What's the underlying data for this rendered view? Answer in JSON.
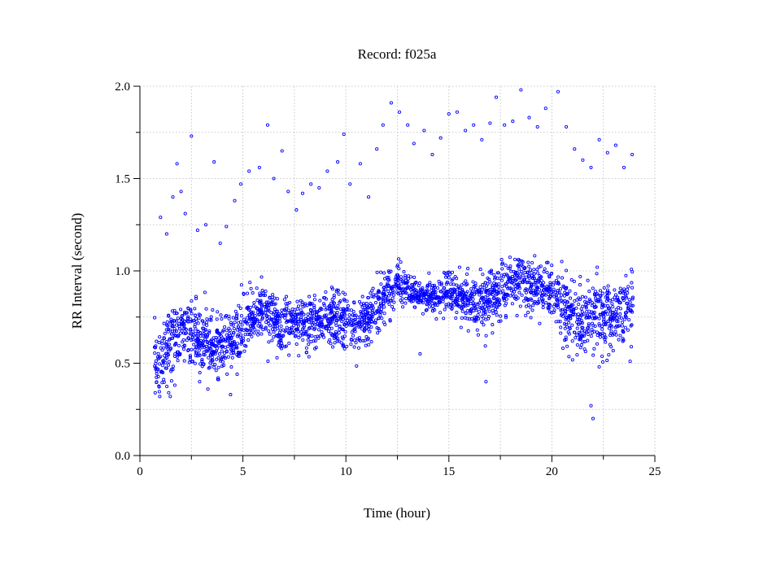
{
  "chart_data": {
    "type": "scatter",
    "title": "Record:  f025a",
    "xlabel": "Time (hour)",
    "ylabel": "RR Interval (second)",
    "xlim": [
      0,
      25
    ],
    "ylim": [
      0.0,
      2.0
    ],
    "x_ticks": [
      0,
      5,
      10,
      15,
      20,
      25
    ],
    "x_tick_labels": [
      "0",
      "5",
      "10",
      "15",
      "20",
      "25"
    ],
    "y_ticks": [
      0.0,
      0.5,
      1.0,
      1.5,
      2.0
    ],
    "y_tick_labels": [
      "0.0",
      "0.5",
      "1.0",
      "1.5",
      "2.0"
    ],
    "grid": true,
    "marker_color": "#0000ff",
    "series": [
      {
        "trend": [
          [
            0.7,
            0.5
          ],
          [
            1.0,
            0.52
          ],
          [
            1.5,
            0.62
          ],
          [
            2.0,
            0.66
          ],
          [
            2.5,
            0.68
          ],
          [
            3.0,
            0.62
          ],
          [
            3.5,
            0.58
          ],
          [
            4.0,
            0.6
          ],
          [
            4.5,
            0.62
          ],
          [
            5.0,
            0.7
          ],
          [
            5.5,
            0.76
          ],
          [
            6.0,
            0.78
          ],
          [
            6.5,
            0.72
          ],
          [
            7.0,
            0.68
          ],
          [
            7.5,
            0.72
          ],
          [
            8.0,
            0.7
          ],
          [
            8.5,
            0.72
          ],
          [
            9.0,
            0.74
          ],
          [
            9.5,
            0.74
          ],
          [
            10.0,
            0.72
          ],
          [
            10.5,
            0.7
          ],
          [
            11.0,
            0.74
          ],
          [
            11.5,
            0.8
          ],
          [
            12.0,
            0.88
          ],
          [
            12.5,
            0.94
          ],
          [
            13.0,
            0.9
          ],
          [
            13.5,
            0.86
          ],
          [
            14.0,
            0.86
          ],
          [
            14.5,
            0.86
          ],
          [
            15.0,
            0.88
          ],
          [
            15.5,
            0.88
          ],
          [
            16.0,
            0.84
          ],
          [
            16.5,
            0.8
          ],
          [
            17.0,
            0.86
          ],
          [
            17.5,
            0.9
          ],
          [
            18.0,
            0.92
          ],
          [
            18.5,
            0.94
          ],
          [
            19.0,
            0.92
          ],
          [
            19.5,
            0.9
          ],
          [
            20.0,
            0.88
          ],
          [
            20.5,
            0.8
          ],
          [
            21.0,
            0.76
          ],
          [
            21.5,
            0.72
          ],
          [
            22.0,
            0.74
          ],
          [
            22.5,
            0.76
          ],
          [
            23.0,
            0.76
          ],
          [
            23.5,
            0.78
          ],
          [
            23.95,
            0.8
          ]
        ],
        "spread": [
          [
            0.7,
            0.1
          ],
          [
            4.5,
            0.1
          ],
          [
            5.0,
            0.08
          ],
          [
            12.0,
            0.08
          ],
          [
            13.0,
            0.04
          ],
          [
            15.0,
            0.05
          ],
          [
            16.0,
            0.08
          ],
          [
            20.0,
            0.08
          ],
          [
            20.5,
            0.1
          ],
          [
            23.95,
            0.11
          ]
        ],
        "outliers": [
          [
            1.0,
            1.29
          ],
          [
            1.3,
            1.2
          ],
          [
            1.6,
            1.4
          ],
          [
            1.8,
            1.58
          ],
          [
            2.0,
            1.43
          ],
          [
            2.2,
            1.31
          ],
          [
            2.5,
            1.73
          ],
          [
            2.8,
            1.22
          ],
          [
            3.2,
            1.25
          ],
          [
            3.6,
            1.59
          ],
          [
            3.9,
            1.15
          ],
          [
            4.2,
            1.24
          ],
          [
            4.6,
            1.38
          ],
          [
            4.9,
            1.47
          ],
          [
            5.3,
            1.54
          ],
          [
            5.8,
            1.56
          ],
          [
            6.2,
            1.79
          ],
          [
            6.5,
            1.5
          ],
          [
            6.9,
            1.65
          ],
          [
            7.2,
            1.43
          ],
          [
            7.6,
            1.33
          ],
          [
            7.9,
            1.42
          ],
          [
            8.3,
            1.47
          ],
          [
            8.7,
            1.45
          ],
          [
            9.1,
            1.54
          ],
          [
            9.6,
            1.59
          ],
          [
            9.9,
            1.74
          ],
          [
            10.2,
            1.47
          ],
          [
            10.7,
            1.58
          ],
          [
            11.1,
            1.4
          ],
          [
            11.5,
            1.66
          ],
          [
            11.8,
            1.79
          ],
          [
            12.2,
            1.91
          ],
          [
            12.6,
            1.86
          ],
          [
            13.0,
            1.79
          ],
          [
            13.3,
            1.69
          ],
          [
            13.8,
            1.76
          ],
          [
            14.2,
            1.63
          ],
          [
            14.6,
            1.72
          ],
          [
            15.0,
            1.85
          ],
          [
            15.4,
            1.86
          ],
          [
            15.8,
            1.76
          ],
          [
            16.2,
            1.79
          ],
          [
            16.6,
            1.71
          ],
          [
            17.0,
            1.8
          ],
          [
            17.3,
            1.94
          ],
          [
            17.7,
            1.79
          ],
          [
            18.1,
            1.81
          ],
          [
            18.5,
            1.98
          ],
          [
            18.9,
            1.83
          ],
          [
            19.3,
            1.78
          ],
          [
            19.7,
            1.88
          ],
          [
            20.3,
            1.97
          ],
          [
            20.7,
            1.78
          ],
          [
            21.1,
            1.66
          ],
          [
            21.5,
            1.6
          ],
          [
            21.9,
            1.56
          ],
          [
            22.3,
            1.71
          ],
          [
            22.7,
            1.64
          ],
          [
            23.1,
            1.68
          ],
          [
            23.5,
            1.56
          ],
          [
            23.9,
            1.63
          ],
          [
            1.4,
            0.34
          ],
          [
            2.9,
            0.4
          ],
          [
            3.3,
            0.36
          ],
          [
            4.4,
            0.33
          ],
          [
            13.6,
            0.55
          ],
          [
            16.8,
            0.4
          ],
          [
            21.9,
            0.27
          ],
          [
            22.0,
            0.2
          ],
          [
            22.3,
            0.48
          ],
          [
            23.8,
            0.51
          ]
        ]
      }
    ]
  }
}
